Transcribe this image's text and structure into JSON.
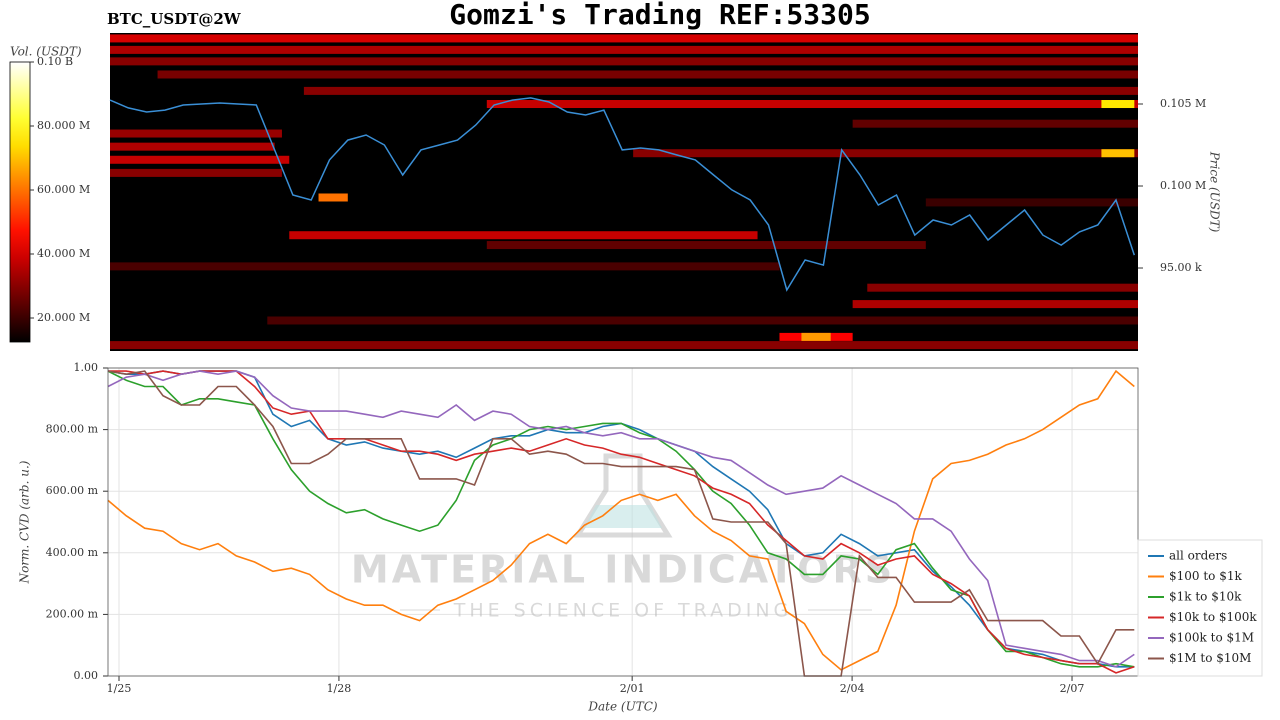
{
  "chart_data": [
    {
      "type": "heatmap",
      "title": "Gomzi's Trading REF:53305",
      "subtitle": "BTC_USDT@2W",
      "y_label": "Price (USDT)",
      "colorbar_label": "Vol. (USDT)",
      "colormap": "hot",
      "clim": [
        12500000,
        100000000
      ],
      "colorbar_ticks": [
        {
          "value": 20000000,
          "label": "20.000 M"
        },
        {
          "value": 40000000,
          "label": "40.000 M"
        },
        {
          "value": 60000000,
          "label": "60.000 M"
        },
        {
          "value": 80000000,
          "label": "80.000 M"
        },
        {
          "value": 100000000,
          "label": "0.10 B"
        }
      ],
      "xlim": [
        -0.15,
        13.9
      ],
      "ylim": [
        89940,
        109330
      ],
      "yticks": [
        {
          "value": 95000,
          "label": "95.00 k"
        },
        {
          "value": 100000,
          "label": "0.100 M"
        },
        {
          "value": 105000,
          "label": "0.105 M"
        }
      ],
      "color": "#3a8fd6",
      "x": [
        -0.15,
        0.1,
        0.35,
        0.6,
        0.85,
        1.1,
        1.35,
        1.6,
        1.85,
        2.1,
        2.35,
        2.6,
        2.85,
        3.1,
        3.35,
        3.6,
        3.85,
        4.1,
        4.35,
        4.6,
        4.85,
        5.1,
        5.35,
        5.6,
        5.85,
        6.1,
        6.35,
        6.6,
        6.85,
        7.1,
        7.35,
        7.6,
        7.85,
        8.1,
        8.35,
        8.6,
        8.85,
        9.1,
        9.35,
        9.6,
        9.85,
        10.1,
        10.35,
        10.6,
        10.85,
        11.1,
        11.35,
        11.6,
        11.85,
        12.1,
        12.35,
        12.6,
        12.85,
        13.1,
        13.35,
        13.6,
        13.85
      ],
      "values": [
        105240,
        104760,
        104510,
        104630,
        104940,
        105000,
        105060,
        105000,
        104940,
        102200,
        99450,
        99150,
        101590,
        102800,
        103110,
        102500,
        100670,
        102200,
        102500,
        102800,
        103720,
        104940,
        105240,
        105370,
        105120,
        104510,
        104330,
        104630,
        102200,
        102320,
        102200,
        101890,
        101590,
        100670,
        99760,
        99150,
        97620,
        93660,
        95490,
        95180,
        102200,
        100670,
        98840,
        99450,
        97010,
        97930,
        97620,
        98230,
        96710,
        97620,
        98540,
        97010,
        96400,
        97200,
        97620,
        99150,
        95790
      ],
      "levels": [
        {
          "price": 109000,
          "start": -0.15,
          "end": 13.9,
          "volume": 40000000
        },
        {
          "price": 108300,
          "start": -0.15,
          "end": 13.9,
          "volume": 35000000
        },
        {
          "price": 107600,
          "start": -0.15,
          "end": 13.9,
          "volume": 30000000
        },
        {
          "price": 106800,
          "start": 0.5,
          "end": 13.9,
          "volume": 28000000
        },
        {
          "price": 105800,
          "start": 2.5,
          "end": 13.9,
          "volume": 30000000
        },
        {
          "price": 105000,
          "start": 5,
          "end": 13.9,
          "volume": 38000000
        },
        {
          "price": 105000,
          "start": 13.4,
          "end": 13.85,
          "volume": 75000000
        },
        {
          "price": 103800,
          "start": 10,
          "end": 13.9,
          "volume": 25000000
        },
        {
          "price": 102000,
          "start": 7,
          "end": 13.9,
          "volume": 30000000
        },
        {
          "price": 102000,
          "start": 13.4,
          "end": 13.85,
          "volume": 70000000
        },
        {
          "price": 103200,
          "start": -0.15,
          "end": 2.2,
          "volume": 32000000
        },
        {
          "price": 102400,
          "start": -0.15,
          "end": 2.1,
          "volume": 35000000
        },
        {
          "price": 101600,
          "start": -0.15,
          "end": 2.3,
          "volume": 38000000
        },
        {
          "price": 100800,
          "start": -0.15,
          "end": 2.2,
          "volume": 30000000
        },
        {
          "price": 99300,
          "start": 2.7,
          "end": 3.1,
          "volume": 60000000
        },
        {
          "price": 99000,
          "start": 11,
          "end": 13.9,
          "volume": 20000000
        },
        {
          "price": 97000,
          "start": 2.3,
          "end": 8.7,
          "volume": 38000000
        },
        {
          "price": 96400,
          "start": 5,
          "end": 11,
          "volume": 25000000
        },
        {
          "price": 95100,
          "start": -0.15,
          "end": 9,
          "volume": 22000000
        },
        {
          "price": 93800,
          "start": 10.2,
          "end": 13.9,
          "volume": 30000000
        },
        {
          "price": 92800,
          "start": 10,
          "end": 13.9,
          "volume": 35000000
        },
        {
          "price": 91800,
          "start": 2,
          "end": 13.9,
          "volume": 22000000
        },
        {
          "price": 90800,
          "start": 9,
          "end": 10,
          "volume": 45000000
        },
        {
          "price": 90800,
          "start": 9.3,
          "end": 9.7,
          "volume": 65000000
        },
        {
          "price": 90300,
          "start": -0.15,
          "end": 13.9,
          "volume": 30000000
        }
      ]
    },
    {
      "type": "line",
      "x_label": "Date (UTC)",
      "y_label": "Norm. CVD (arb. u.)",
      "grid": true,
      "legend": "lower right",
      "xlim": [
        -0.15,
        13.9
      ],
      "ylim": [
        0,
        1
      ],
      "xticks": [
        {
          "value": 0,
          "label": "1/25"
        },
        {
          "value": 3,
          "label": "1/28"
        },
        {
          "value": 7,
          "label": "2/01"
        },
        {
          "value": 10,
          "label": "2/04"
        },
        {
          "value": 13,
          "label": "2/07"
        }
      ],
      "yticks": [
        {
          "value": 0,
          "label": "0.00"
        },
        {
          "value": 0.2,
          "label": "200.00 m"
        },
        {
          "value": 0.4,
          "label": "400.00 m"
        },
        {
          "value": 0.6,
          "label": "600.00 m"
        },
        {
          "value": 0.8,
          "label": "800.00 m"
        },
        {
          "value": 1,
          "label": "1.00"
        }
      ],
      "x": [
        -0.15,
        0.1,
        0.35,
        0.6,
        0.85,
        1.1,
        1.35,
        1.6,
        1.85,
        2.1,
        2.35,
        2.6,
        2.85,
        3.1,
        3.35,
        3.6,
        3.85,
        4.1,
        4.35,
        4.6,
        4.85,
        5.1,
        5.35,
        5.6,
        5.85,
        6.1,
        6.35,
        6.6,
        6.85,
        7.1,
        7.35,
        7.6,
        7.85,
        8.1,
        8.35,
        8.6,
        8.85,
        9.1,
        9.35,
        9.6,
        9.85,
        10.1,
        10.35,
        10.6,
        10.85,
        11.1,
        11.35,
        11.6,
        11.85,
        12.1,
        12.35,
        12.6,
        12.85,
        13.1,
        13.35,
        13.6,
        13.85
      ],
      "series": [
        {
          "name": "all orders",
          "color": "#1f77b4",
          "values": [
            0.99,
            0.98,
            0.98,
            0.99,
            0.98,
            0.99,
            0.99,
            0.99,
            0.97,
            0.85,
            0.81,
            0.83,
            0.77,
            0.75,
            0.76,
            0.74,
            0.73,
            0.72,
            0.73,
            0.71,
            0.74,
            0.77,
            0.78,
            0.78,
            0.8,
            0.79,
            0.79,
            0.81,
            0.82,
            0.8,
            0.77,
            0.75,
            0.73,
            0.68,
            0.64,
            0.6,
            0.54,
            0.43,
            0.39,
            0.4,
            0.46,
            0.43,
            0.39,
            0.4,
            0.41,
            0.34,
            0.29,
            0.23,
            0.15,
            0.09,
            0.08,
            0.07,
            0.05,
            0.04,
            0.04,
            0.03,
            0.03
          ]
        },
        {
          "name": "$100 to $1k",
          "color": "#ff7f0e",
          "values": [
            0.57,
            0.52,
            0.48,
            0.47,
            0.43,
            0.41,
            0.43,
            0.39,
            0.37,
            0.34,
            0.35,
            0.33,
            0.28,
            0.25,
            0.23,
            0.23,
            0.2,
            0.18,
            0.23,
            0.25,
            0.28,
            0.31,
            0.36,
            0.43,
            0.46,
            0.43,
            0.49,
            0.52,
            0.57,
            0.59,
            0.57,
            0.59,
            0.52,
            0.47,
            0.44,
            0.39,
            0.38,
            0.21,
            0.17,
            0.07,
            0.02,
            0.05,
            0.08,
            0.23,
            0.47,
            0.64,
            0.69,
            0.7,
            0.72,
            0.75,
            0.77,
            0.8,
            0.84,
            0.88,
            0.9,
            0.99,
            0.94
          ]
        },
        {
          "name": "$1k to $10k",
          "color": "#2ca02c",
          "values": [
            0.99,
            0.96,
            0.94,
            0.94,
            0.88,
            0.9,
            0.9,
            0.89,
            0.88,
            0.77,
            0.67,
            0.6,
            0.56,
            0.53,
            0.54,
            0.51,
            0.49,
            0.47,
            0.49,
            0.57,
            0.7,
            0.75,
            0.77,
            0.8,
            0.81,
            0.8,
            0.81,
            0.82,
            0.82,
            0.79,
            0.77,
            0.73,
            0.67,
            0.6,
            0.56,
            0.49,
            0.4,
            0.38,
            0.33,
            0.33,
            0.39,
            0.38,
            0.33,
            0.41,
            0.43,
            0.35,
            0.28,
            0.26,
            0.15,
            0.08,
            0.08,
            0.06,
            0.04,
            0.03,
            0.03,
            0.04,
            0.03
          ]
        },
        {
          "name": "$10k to $100k",
          "color": "#d62728",
          "values": [
            0.99,
            0.99,
            0.98,
            0.99,
            0.98,
            0.99,
            0.99,
            0.99,
            0.94,
            0.87,
            0.85,
            0.86,
            0.77,
            0.77,
            0.77,
            0.75,
            0.73,
            0.73,
            0.72,
            0.7,
            0.72,
            0.73,
            0.74,
            0.73,
            0.75,
            0.77,
            0.75,
            0.74,
            0.72,
            0.71,
            0.69,
            0.67,
            0.65,
            0.61,
            0.59,
            0.56,
            0.49,
            0.44,
            0.39,
            0.38,
            0.43,
            0.4,
            0.36,
            0.38,
            0.39,
            0.33,
            0.3,
            0.26,
            0.15,
            0.09,
            0.07,
            0.06,
            0.05,
            0.04,
            0.04,
            0.01,
            0.03
          ]
        },
        {
          "name": "$100k to $1M",
          "color": "#9467bd",
          "values": [
            0.94,
            0.97,
            0.98,
            0.96,
            0.98,
            0.99,
            0.98,
            0.99,
            0.97,
            0.91,
            0.87,
            0.86,
            0.86,
            0.86,
            0.85,
            0.84,
            0.86,
            0.85,
            0.84,
            0.88,
            0.83,
            0.86,
            0.85,
            0.81,
            0.8,
            0.81,
            0.79,
            0.78,
            0.79,
            0.77,
            0.77,
            0.75,
            0.73,
            0.71,
            0.7,
            0.66,
            0.62,
            0.59,
            0.6,
            0.61,
            0.65,
            0.62,
            0.59,
            0.56,
            0.51,
            0.51,
            0.47,
            0.38,
            0.31,
            0.1,
            0.09,
            0.08,
            0.07,
            0.05,
            0.05,
            0.03,
            0.07
          ]
        },
        {
          "name": "$1M to $10M",
          "color": "#8c564b",
          "values": [
            0.99,
            0.98,
            0.99,
            0.91,
            0.88,
            0.88,
            0.94,
            0.94,
            0.88,
            0.81,
            0.69,
            0.69,
            0.72,
            0.77,
            0.77,
            0.77,
            0.77,
            0.64,
            0.64,
            0.64,
            0.62,
            0.77,
            0.77,
            0.72,
            0.73,
            0.72,
            0.69,
            0.69,
            0.68,
            0.68,
            0.68,
            0.68,
            0.67,
            0.51,
            0.5,
            0.5,
            0.5,
            0.43,
            0,
            0,
            0,
            0.39,
            0.32,
            0.32,
            0.24,
            0.24,
            0.24,
            0.28,
            0.18,
            0.18,
            0.18,
            0.18,
            0.13,
            0.13,
            0.04,
            0.15,
            0.15
          ]
        }
      ]
    }
  ],
  "watermark": {
    "title": "MATERIAL INDICATORS",
    "subtitle": "THE SCIENCE OF TRADING"
  }
}
